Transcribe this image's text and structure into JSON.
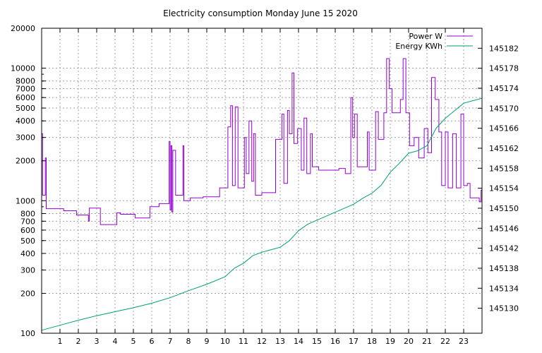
{
  "chart_data": {
    "type": "line",
    "title": "Electricity consumption Monday June 15 2020",
    "xlabel": "",
    "ylabel": "",
    "x_ticks": [
      "1",
      "2",
      "3",
      "4",
      "5",
      "6",
      "7",
      "8",
      "9",
      "10",
      "11",
      "12",
      "13",
      "14",
      "15",
      "16",
      "17",
      "18",
      "19",
      "20",
      "21",
      "22",
      "23"
    ],
    "xlim": [
      0,
      24
    ],
    "y_scale": "log",
    "ylim": [
      100,
      20000
    ],
    "y_ticks": [
      "100",
      "200",
      "300",
      "400",
      "500",
      "600",
      "700",
      "800",
      "1000",
      "2000",
      "3000",
      "4000",
      "5000",
      "6000",
      "7000",
      "8000",
      "10000",
      "20000"
    ],
    "y2_scale": "linear",
    "y2lim": [
      145125,
      145186
    ],
    "y2_ticks": [
      "145130",
      "145134",
      "145138",
      "145142",
      "145146",
      "145150",
      "145154",
      "145158",
      "145162",
      "145166",
      "145170",
      "145174",
      "145178",
      "145182"
    ],
    "grid": true,
    "legend_position": "top-right",
    "colors": {
      "power": "#9400d3",
      "energy": "#009e73"
    },
    "series": [
      {
        "name": "Power W",
        "axis": "y",
        "points": [
          [
            0,
            3200
          ],
          [
            0.05,
            1100
          ],
          [
            0.2,
            2100
          ],
          [
            0.25,
            870
          ],
          [
            1.2,
            840
          ],
          [
            1.9,
            780
          ],
          [
            2.55,
            700
          ],
          [
            2.6,
            880
          ],
          [
            3.2,
            660
          ],
          [
            4.1,
            810
          ],
          [
            4.3,
            790
          ],
          [
            5.1,
            740
          ],
          [
            5.9,
            900
          ],
          [
            6.4,
            950
          ],
          [
            6.95,
            2800
          ],
          [
            7.0,
            850
          ],
          [
            7.05,
            2600
          ],
          [
            7.1,
            820
          ],
          [
            7.15,
            2400
          ],
          [
            7.3,
            1100
          ],
          [
            7.7,
            2600
          ],
          [
            7.75,
            1000
          ],
          [
            8.1,
            1050
          ],
          [
            8.8,
            1070
          ],
          [
            9.7,
            1250
          ],
          [
            10.15,
            3600
          ],
          [
            10.3,
            5200
          ],
          [
            10.4,
            1300
          ],
          [
            10.55,
            5100
          ],
          [
            10.7,
            1250
          ],
          [
            11.05,
            3000
          ],
          [
            11.15,
            1600
          ],
          [
            11.3,
            4000
          ],
          [
            11.45,
            1400
          ],
          [
            11.55,
            3200
          ],
          [
            11.65,
            1100
          ],
          [
            12.0,
            1150
          ],
          [
            12.75,
            2900
          ],
          [
            13.1,
            4500
          ],
          [
            13.2,
            1350
          ],
          [
            13.4,
            4800
          ],
          [
            13.5,
            3200
          ],
          [
            13.65,
            9200
          ],
          [
            13.75,
            2700
          ],
          [
            13.95,
            3500
          ],
          [
            14.15,
            1700
          ],
          [
            14.3,
            4200
          ],
          [
            14.45,
            1600
          ],
          [
            14.65,
            3200
          ],
          [
            14.75,
            1800
          ],
          [
            15.1,
            1700
          ],
          [
            15.6,
            1700
          ],
          [
            16.2,
            1750
          ],
          [
            16.55,
            1600
          ],
          [
            16.85,
            6000
          ],
          [
            16.95,
            3000
          ],
          [
            17.05,
            4500
          ],
          [
            17.2,
            1800
          ],
          [
            17.75,
            3300
          ],
          [
            17.85,
            1700
          ],
          [
            18.2,
            4700
          ],
          [
            18.35,
            2900
          ],
          [
            18.65,
            4600
          ],
          [
            18.8,
            11800
          ],
          [
            18.95,
            7000
          ],
          [
            19.1,
            4600
          ],
          [
            19.3,
            4600
          ],
          [
            19.55,
            5800
          ],
          [
            19.7,
            11800
          ],
          [
            19.85,
            4600
          ],
          [
            20.05,
            2600
          ],
          [
            20.3,
            3000
          ],
          [
            20.55,
            2100
          ],
          [
            20.85,
            3500
          ],
          [
            21.05,
            2300
          ],
          [
            21.25,
            8500
          ],
          [
            21.45,
            5800
          ],
          [
            21.65,
            3300
          ],
          [
            21.8,
            1300
          ],
          [
            22.0,
            3300
          ],
          [
            22.15,
            1250
          ],
          [
            22.4,
            3200
          ],
          [
            22.6,
            1250
          ],
          [
            22.85,
            4500
          ],
          [
            23.0,
            1300
          ],
          [
            23.2,
            1350
          ],
          [
            23.35,
            1050
          ],
          [
            23.85,
            980
          ],
          [
            23.95,
            1200
          ],
          [
            24,
            2400
          ]
        ]
      },
      {
        "name": "Energy KWh",
        "axis": "y2",
        "points": [
          [
            0,
            145125.6
          ],
          [
            1,
            145126.6
          ],
          [
            2,
            145127.6
          ],
          [
            3,
            145128.5
          ],
          [
            4,
            145129.3
          ],
          [
            5,
            145130.1
          ],
          [
            6,
            145131
          ],
          [
            7,
            145132.1
          ],
          [
            8,
            145133.5
          ],
          [
            9,
            145134.8
          ],
          [
            10,
            145136.3
          ],
          [
            10.5,
            145138
          ],
          [
            11,
            145139
          ],
          [
            11.5,
            145140.5
          ],
          [
            12,
            145141.2
          ],
          [
            13,
            145142.2
          ],
          [
            13.5,
            145143.5
          ],
          [
            14,
            145145.5
          ],
          [
            14.5,
            145146.8
          ],
          [
            15,
            145147.6
          ],
          [
            16,
            145149.2
          ],
          [
            17,
            145150.8
          ],
          [
            17.5,
            145152
          ],
          [
            18,
            145153
          ],
          [
            18.5,
            145154.6
          ],
          [
            19,
            145157.2
          ],
          [
            19.5,
            145159
          ],
          [
            20,
            145161
          ],
          [
            20.5,
            145161.5
          ],
          [
            21,
            145162.5
          ],
          [
            21.5,
            145166
          ],
          [
            22,
            145168
          ],
          [
            22.5,
            145169.5
          ],
          [
            23,
            145171
          ],
          [
            24,
            145172
          ]
        ]
      }
    ]
  }
}
